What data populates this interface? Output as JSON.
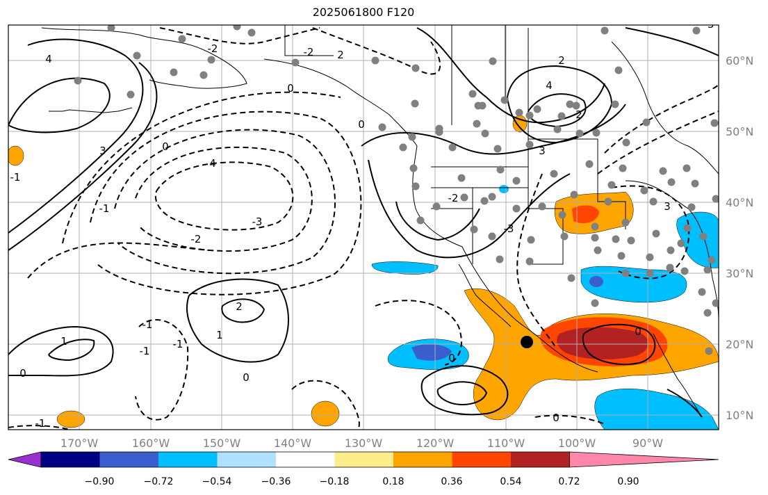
{
  "title": "2025061800 F120",
  "longitude_labels": [
    "170°W",
    "160°W",
    "150°W",
    "140°W",
    "130°W",
    "120°W",
    "110°W",
    "100°W",
    "90°W"
  ],
  "latitude_labels": [
    "60°N",
    "50°N",
    "40°N",
    "30°N",
    "20°N",
    "10°N"
  ],
  "colorbar": {
    "tick_labels": [
      "−0.90",
      "−0.72",
      "−0.54",
      "−0.36",
      "−0.18",
      "0.18",
      "0.36",
      "0.54",
      "0.72",
      "0.90"
    ],
    "colors": [
      "#9b30d0",
      "#000080",
      "#3a5fcd",
      "#00bfff",
      "#b0e2ff",
      "#ffffff",
      "#ffec8b",
      "#ffa500",
      "#ff4500",
      "#b22222",
      "#ff88aa"
    ]
  },
  "colors": {
    "positive_anomaly_light": "#ffa500",
    "positive_anomaly_mid": "#ff4500",
    "positive_anomaly_strong": "#b22222",
    "negative_anomaly_light": "#00bfff",
    "negative_anomaly_mid": "#3a5fcd",
    "station_marker": "#808080",
    "gridline": "#b0b0b0"
  },
  "contour_labels": [
    "4",
    "-2",
    "2",
    "-2",
    "0",
    "2",
    "4",
    "2",
    "3",
    "-1",
    "-2",
    "3",
    "0",
    "4",
    "-3",
    "-2",
    "3",
    "-3",
    "2",
    "1",
    "-1",
    "0",
    "-1",
    "0",
    "-1",
    "0",
    "1",
    "0",
    "0",
    "-1",
    "-1",
    "0",
    "-3"
  ]
}
